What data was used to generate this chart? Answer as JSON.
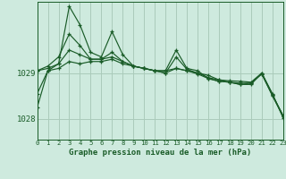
{
  "title": "Graphe pression niveau de la mer (hPa)",
  "background_color": "#ceeade",
  "plot_bg_color": "#ceeade",
  "grid_color": "#aacbba",
  "line_color": "#1a5c28",
  "yticks": [
    1028,
    1029
  ],
  "xlim": [
    0,
    23
  ],
  "ylim": [
    1027.55,
    1030.55
  ],
  "series": [
    [
      1028.55,
      1029.05,
      1029.1,
      1029.25,
      1029.2,
      1029.25,
      1029.25,
      1029.3,
      1029.2,
      1029.15,
      1029.1,
      1029.05,
      1029.05,
      1029.1,
      1029.05,
      1029.0,
      1028.95,
      1028.85,
      1028.8,
      1028.75,
      1028.75,
      1029.0,
      1028.55,
      1028.02
    ],
    [
      1029.05,
      1029.1,
      1029.2,
      1029.5,
      1029.4,
      1029.3,
      1029.3,
      1029.35,
      1029.25,
      1029.15,
      1029.1,
      1029.05,
      1029.0,
      1029.1,
      1029.05,
      1028.98,
      1028.88,
      1028.82,
      1028.8,
      1028.75,
      1028.78,
      1028.98,
      1028.5,
      1028.05
    ],
    [
      1029.05,
      1029.15,
      1029.35,
      1029.85,
      1029.6,
      1029.3,
      1029.3,
      1029.45,
      1029.25,
      1029.15,
      1029.1,
      1029.05,
      1029.0,
      1029.35,
      1029.08,
      1029.0,
      1028.9,
      1028.85,
      1028.83,
      1028.82,
      1028.8,
      1029.0,
      1028.52,
      1028.07
    ],
    [
      1028.25,
      1029.05,
      1029.2,
      1030.45,
      1030.05,
      1029.45,
      1029.35,
      1029.9,
      1029.4,
      1029.15,
      1029.1,
      1029.05,
      1029.05,
      1029.5,
      1029.1,
      1029.05,
      1028.88,
      1028.82,
      1028.8,
      1028.78,
      1028.78,
      1028.98,
      1028.52,
      1028.07
    ]
  ]
}
